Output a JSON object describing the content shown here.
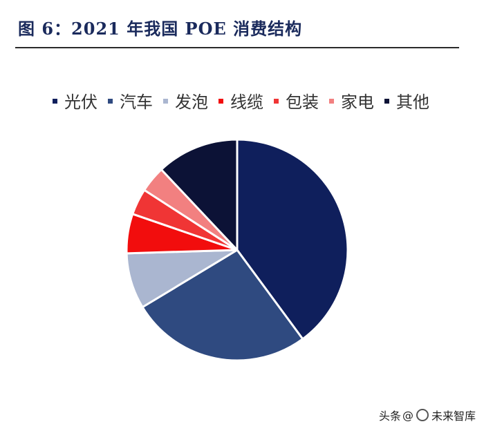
{
  "header": {
    "title": "图 6：2021 年我国 POE 消费结构"
  },
  "chart_data": {
    "type": "pie",
    "title": "",
    "legend_position": "top",
    "series": [
      {
        "name": "光伏",
        "value": 41.5,
        "color": "#0f1f5c"
      },
      {
        "name": "汽车",
        "value": 27.5,
        "color": "#2f4a80"
      },
      {
        "name": "发泡",
        "value": 8.5,
        "color": "#aab6d0"
      },
      {
        "name": "线缆",
        "value": 6.0,
        "color": "#f20d0d"
      },
      {
        "name": "包装",
        "value": 4.0,
        "color": "#f03535"
      },
      {
        "name": "家电",
        "value": 4.0,
        "color": "#f28080"
      },
      {
        "name": "其他",
        "value": 12.5,
        "color": "#0c1236"
      }
    ]
  },
  "watermark": {
    "prefix": "头条",
    "at": "@",
    "name": "未来智库"
  }
}
